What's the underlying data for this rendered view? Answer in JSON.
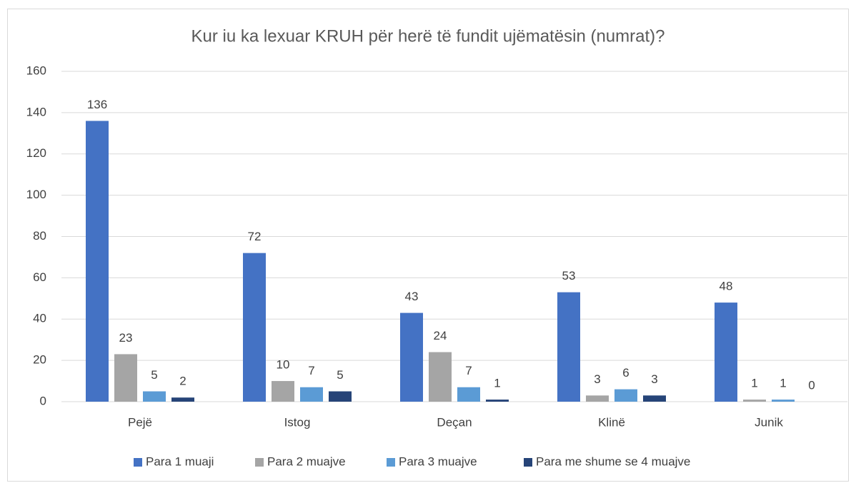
{
  "chart_data": {
    "type": "bar",
    "title": "Kur iu ka lexuar KRUH për herë të fundit ujëmatësin (numrat)?",
    "categories": [
      "Pejë",
      "Istog",
      "Deçan",
      "Klinë",
      "Junik"
    ],
    "series": [
      {
        "name": "Para 1 muaji",
        "color": "#4472c4",
        "values": [
          136,
          72,
          43,
          53,
          48
        ]
      },
      {
        "name": "Para 2 muajve",
        "color": "#a5a5a5",
        "values": [
          23,
          10,
          24,
          3,
          1
        ]
      },
      {
        "name": "Para 3 muajve",
        "color": "#5b9bd5",
        "values": [
          5,
          7,
          7,
          6,
          1
        ]
      },
      {
        "name": "Para me shume se 4 muajve",
        "color": "#264478",
        "values": [
          2,
          5,
          1,
          3,
          0
        ]
      }
    ],
    "ylim": [
      0,
      160
    ],
    "yticks": [
      0,
      20,
      40,
      60,
      80,
      100,
      120,
      140,
      160
    ],
    "grid": true,
    "legend": "bottom"
  }
}
